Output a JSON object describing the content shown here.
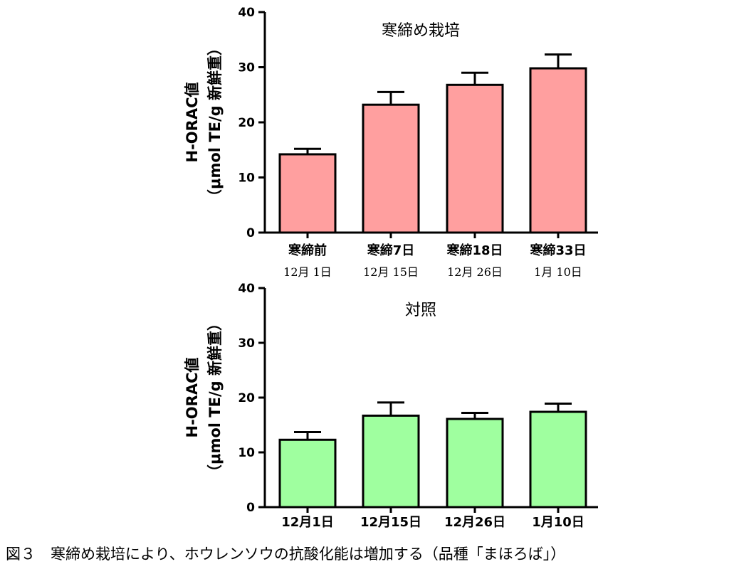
{
  "chart_data": [
    {
      "type": "bar",
      "title": "寒締め栽培",
      "ylabel_lines": [
        "H-ORAC値",
        "（μmol TE/g 新鮮重）"
      ],
      "ylim": [
        0,
        40
      ],
      "yticks": [
        "0",
        "10",
        "20",
        "30",
        "40"
      ],
      "categories": [
        "寒締前",
        "寒締7日",
        "寒締18日",
        "寒締33日"
      ],
      "dates": [
        "12月 1日",
        "12月 15日",
        "12月 26日",
        "1月 10日"
      ],
      "values": [
        14.2,
        23.2,
        26.8,
        29.8
      ],
      "errors": [
        1.0,
        2.3,
        2.2,
        2.5
      ],
      "bar_color": "#ff9f9f"
    },
    {
      "type": "bar",
      "title": "対照",
      "ylabel_lines": [
        "H-ORAC値",
        "（μmol TE/g 新鮮重）"
      ],
      "ylim": [
        0,
        40
      ],
      "yticks": [
        "0",
        "10",
        "20",
        "30",
        "40"
      ],
      "categories": [
        "12月1日",
        "12月15日",
        "12月26日",
        "1月10日"
      ],
      "values": [
        12.3,
        16.7,
        16.1,
        17.4
      ],
      "errors": [
        1.4,
        2.4,
        1.1,
        1.5
      ],
      "bar_color": "#9fff9f"
    }
  ],
  "caption": "図３　寒締め栽培により、ホウレンソウの抗酸化能は増加する（品種「まほろば」）"
}
